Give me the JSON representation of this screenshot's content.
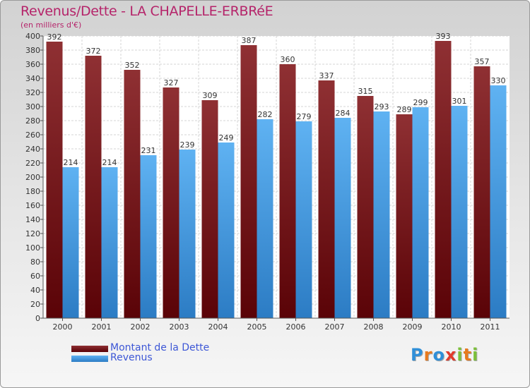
{
  "header": {
    "title": "Revenus/Dette - LA CHAPELLE-ERBRéE",
    "subtitle": "(en milliers d'€)"
  },
  "chart_data": {
    "type": "bar",
    "title": "Revenus/Dette - LA CHAPELLE-ERBRéE",
    "subtitle": "(en milliers d'€)",
    "xlabel": "",
    "ylabel": "",
    "categories": [
      "2000",
      "2001",
      "2002",
      "2003",
      "2004",
      "2005",
      "2006",
      "2007",
      "2008",
      "2009",
      "2010",
      "2011"
    ],
    "series": [
      {
        "name": "Montant de la Dette",
        "color": "#7d1f23",
        "values": [
          392,
          372,
          352,
          327,
          309,
          387,
          360,
          337,
          315,
          289,
          393,
          357
        ]
      },
      {
        "name": "Revenus",
        "color": "#3f9de6",
        "values": [
          214,
          214,
          231,
          239,
          249,
          282,
          279,
          284,
          293,
          299,
          301,
          330
        ]
      }
    ],
    "ylim": [
      0,
      400
    ],
    "yticks": [
      0,
      20,
      40,
      60,
      80,
      100,
      120,
      140,
      160,
      180,
      200,
      220,
      240,
      260,
      280,
      300,
      320,
      340,
      360,
      380,
      400
    ],
    "grid": true,
    "legend_position": "bottom-left"
  },
  "legend": {
    "items": [
      {
        "label": "Montant de la Dette",
        "color": "#7d1f23"
      },
      {
        "label": "Revenus",
        "color": "#3f9de6"
      }
    ]
  },
  "logo": {
    "letters": [
      "P",
      "r",
      "o",
      "x",
      "i",
      "t",
      "i"
    ],
    "colors": [
      "#2f8fd8",
      "#e87a1e",
      "#2f8fd8",
      "#e23a2c",
      "#7cc03a",
      "#e87a1e",
      "#7cc03a"
    ],
    "text": "Proxiti"
  }
}
